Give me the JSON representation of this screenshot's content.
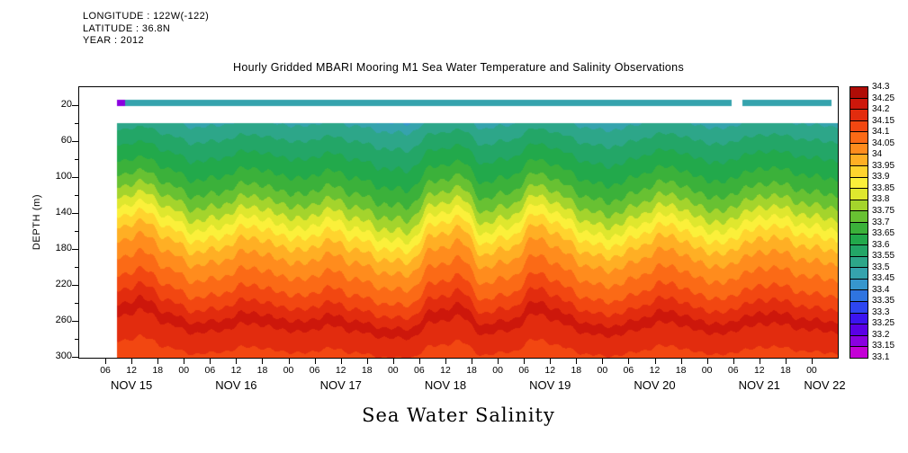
{
  "meta": {
    "longitude": "LONGITUDE : 122W(-122)",
    "latitude": "LATITUDE : 36.8N",
    "year": "YEAR : 2012"
  },
  "title": "Hourly Gridded MBARI Mooring M1 Sea Water Temperature and Salinity Observations",
  "caption": "Sea Water Salinity",
  "axes": {
    "ylabel": "DEPTH (m)",
    "y_range": [
      0,
      300
    ],
    "y_major_ticks": [
      20,
      60,
      100,
      140,
      180,
      220,
      260,
      300
    ],
    "y_minor_ticks": [
      40,
      80,
      120,
      160,
      200,
      240,
      280
    ],
    "x_range_hours": [
      0,
      174
    ],
    "x_ticks": {
      "start_hour": 6,
      "end_hour": 168,
      "step_hours": 6,
      "label_cycle": [
        "06",
        "12",
        "18",
        "00"
      ]
    },
    "day_labels": [
      {
        "label": "NOV 15",
        "hour": 12
      },
      {
        "label": "NOV 16",
        "hour": 36
      },
      {
        "label": "NOV 17",
        "hour": 60
      },
      {
        "label": "NOV 18",
        "hour": 84
      },
      {
        "label": "NOV 19",
        "hour": 108
      },
      {
        "label": "NOV 20",
        "hour": 132
      },
      {
        "label": "NOV 21",
        "hour": 156
      },
      {
        "label": "NOV 22",
        "hour": 171
      }
    ]
  },
  "colorbar": {
    "levels": [
      33.1,
      33.15,
      33.2,
      33.25,
      33.3,
      33.35,
      33.4,
      33.45,
      33.5,
      33.55,
      33.6,
      33.65,
      33.7,
      33.75,
      33.8,
      33.85,
      33.9,
      33.95,
      34,
      34.05,
      34.1,
      34.15,
      34.2,
      34.25,
      34.3
    ],
    "tick_labels": [
      "34.3",
      "34.25",
      "34.2",
      "34.15",
      "34.1",
      "34.05",
      "34",
      "33.95",
      "33.9",
      "33.85",
      "33.8",
      "33.75",
      "33.7",
      "33.65",
      "33.6",
      "33.55",
      "33.5",
      "33.45",
      "33.4",
      "33.35",
      "33.3",
      "33.25",
      "33.2",
      "33.15",
      "33.1"
    ],
    "colors_low_to_high": [
      "#c400d6",
      "#8a00e0",
      "#5a00e6",
      "#3c14f0",
      "#2e46f0",
      "#2f74e0",
      "#3696cd",
      "#35a3ad",
      "#2da689",
      "#23a667",
      "#22a94b",
      "#3bb13a",
      "#68c132",
      "#a4d42c",
      "#dfe72e",
      "#fbf03a",
      "#ffd42e",
      "#ffaf24",
      "#ff8c1d",
      "#fb6a16",
      "#f24711",
      "#e22c0e",
      "#cd170b",
      "#b00d07"
    ]
  },
  "chart_data": {
    "type": "filled-contour-heatmap",
    "x_unit": "hours since NOV 15 2012 00:00",
    "y_unit": "depth (m)",
    "value_unit": "salinity (psu)",
    "data_start_hour": 8.5,
    "data_end_hour": 174,
    "field_top_depth_m": 40,
    "profile": {
      "depth": [
        25,
        40,
        60,
        80,
        100,
        120,
        140,
        160,
        180,
        200,
        220,
        240,
        252,
        262,
        272,
        285,
        300
      ],
      "salinity": [
        33.42,
        33.5,
        33.56,
        33.61,
        33.66,
        33.72,
        33.8,
        33.89,
        33.97,
        34.03,
        34.08,
        34.14,
        34.19,
        34.215,
        34.19,
        34.16,
        34.14
      ]
    },
    "displacement_m": {
      "hours": [
        9,
        15,
        21,
        27,
        33,
        39,
        45,
        51,
        57,
        63,
        69,
        75,
        81,
        87,
        93,
        99,
        105,
        111,
        117,
        123,
        129,
        135,
        141,
        147,
        153,
        159,
        165,
        171
      ],
      "values": [
        18,
        22,
        4,
        -8,
        -2,
        8,
        0,
        -6,
        4,
        -4,
        -14,
        -18,
        8,
        16,
        -10,
        -2,
        20,
        6,
        -10,
        -12,
        0,
        10,
        -2,
        -10,
        2,
        8,
        0,
        -5
      ]
    },
    "displacement_depth_scale": {
      "depth": [
        40,
        100,
        160,
        220,
        260,
        300
      ],
      "scale": [
        0.55,
        1.0,
        1.2,
        1.05,
        0.8,
        0.5
      ]
    },
    "ripple": {
      "components": [
        {
          "amp": 2.6,
          "freq": 1.9,
          "phase": 0.7
        },
        {
          "amp": 1.7,
          "freq": 0.85,
          "phase": 2.1
        }
      ]
    },
    "surface_strip": {
      "depth_top_m": 14,
      "depth_bottom_m": 20,
      "segments": [
        {
          "start_hour": 8.5,
          "end_hour": 10.5,
          "salinity": 33.18
        },
        {
          "start_hour": 10.5,
          "end_hour": 149.5,
          "salinity": 33.47
        },
        {
          "start_hour": 152,
          "end_hour": 172.5,
          "salinity": 33.47
        }
      ]
    }
  }
}
